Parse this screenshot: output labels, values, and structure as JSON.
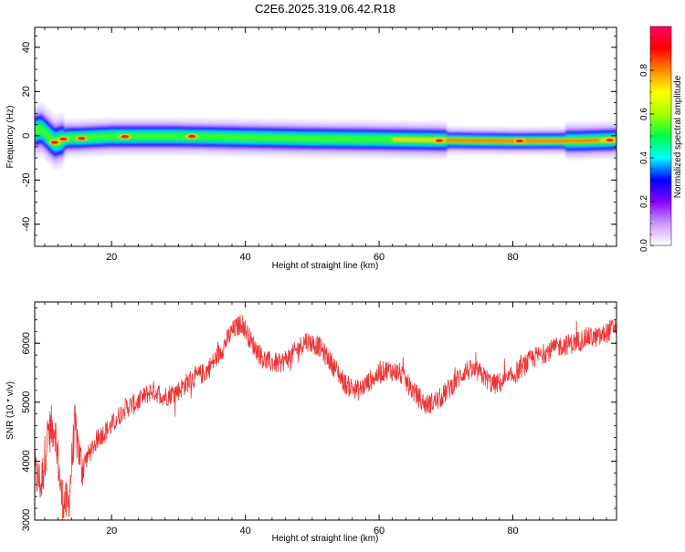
{
  "title": "C2E6.2025.319.06.42.R18",
  "chart_data": [
    {
      "type": "heatmap",
      "xlabel": "Height of straight line (km)",
      "ylabel": "Frequency (Hz)",
      "xlim": [
        8.5,
        95.5
      ],
      "ylim": [
        -50,
        49
      ],
      "x_ticks": [
        20,
        40,
        60,
        80
      ],
      "y_ticks": [
        -40,
        -20,
        0,
        20,
        40
      ],
      "colorbar": {
        "label": "Normalized spectral amplitude",
        "range": [
          0,
          1
        ],
        "ticks": [
          0.0,
          0.2,
          0.4,
          0.6,
          0.8
        ],
        "tick_labels": [
          "0.0",
          "0.2",
          "0.4",
          "0.6",
          "0.8"
        ],
        "colors": [
          "#ffffff",
          "#cc99ff",
          "#8800ff",
          "#0000ff",
          "#00ffff",
          "#00ff44",
          "#aaff00",
          "#ffff00",
          "#ff8800",
          "#ff0000",
          "#ff0066"
        ]
      },
      "ridge": [
        [
          8.5,
          2
        ],
        [
          9.5,
          3
        ],
        [
          10.5,
          0
        ],
        [
          11.5,
          -3
        ],
        [
          12.5,
          -2
        ],
        [
          13.5,
          -1
        ],
        [
          15,
          -1
        ],
        [
          20,
          -0.3
        ],
        [
          30,
          -0.3
        ],
        [
          40,
          -0.8
        ],
        [
          50,
          -1.3
        ],
        [
          60,
          -1.6
        ],
        [
          70,
          -2
        ],
        [
          80,
          -2.4
        ],
        [
          90,
          -2.3
        ],
        [
          95.5,
          -1.8
        ]
      ],
      "hotspots": [
        [
          11.5,
          -3
        ],
        [
          12.8,
          -1.5
        ],
        [
          15.5,
          -1.2
        ],
        [
          22,
          -0.4
        ],
        [
          32,
          -0.3
        ],
        [
          69,
          -2.2
        ],
        [
          81,
          -2.4
        ],
        [
          94.5,
          -2
        ]
      ]
    },
    {
      "type": "line",
      "xlabel": "Height of straight line (km)",
      "ylabel": "SNR (10 * v/v)",
      "xlim": [
        8.5,
        95.5
      ],
      "ylim": [
        3000,
        6700
      ],
      "x_ticks": [
        20,
        40,
        60,
        80
      ],
      "y_ticks": [
        3000,
        4000,
        5000,
        6000
      ],
      "color": "#ee3333",
      "trend": [
        [
          8.5,
          3800
        ],
        [
          9.5,
          3600
        ],
        [
          10.5,
          4500
        ],
        [
          11.5,
          4600
        ],
        [
          12.5,
          3400
        ],
        [
          13.5,
          3200
        ],
        [
          14.5,
          4600
        ],
        [
          15.5,
          3900
        ],
        [
          16.5,
          4100
        ],
        [
          18,
          4400
        ],
        [
          20,
          4600
        ],
        [
          22,
          4900
        ],
        [
          24,
          5000
        ],
        [
          26,
          5200
        ],
        [
          28,
          5100
        ],
        [
          30,
          5200
        ],
        [
          32,
          5400
        ],
        [
          34,
          5500
        ],
        [
          36,
          5800
        ],
        [
          38,
          6200
        ],
        [
          39.5,
          6350
        ],
        [
          41,
          6000
        ],
        [
          43,
          5700
        ],
        [
          45,
          5650
        ],
        [
          47,
          5800
        ],
        [
          49,
          6050
        ],
        [
          51,
          5950
        ],
        [
          53,
          5650
        ],
        [
          55,
          5300
        ],
        [
          57,
          5200
        ],
        [
          59,
          5400
        ],
        [
          61,
          5550
        ],
        [
          63,
          5500
        ],
        [
          65,
          5200
        ],
        [
          67,
          4950
        ],
        [
          69,
          5050
        ],
        [
          71,
          5300
        ],
        [
          73,
          5550
        ],
        [
          75,
          5500
        ],
        [
          77,
          5300
        ],
        [
          79,
          5350
        ],
        [
          81,
          5550
        ],
        [
          83,
          5750
        ],
        [
          85,
          5850
        ],
        [
          87,
          5950
        ],
        [
          89,
          6000
        ],
        [
          91,
          6100
        ],
        [
          93,
          6100
        ],
        [
          95.5,
          6300
        ]
      ],
      "noise_amplitude": 180
    }
  ]
}
